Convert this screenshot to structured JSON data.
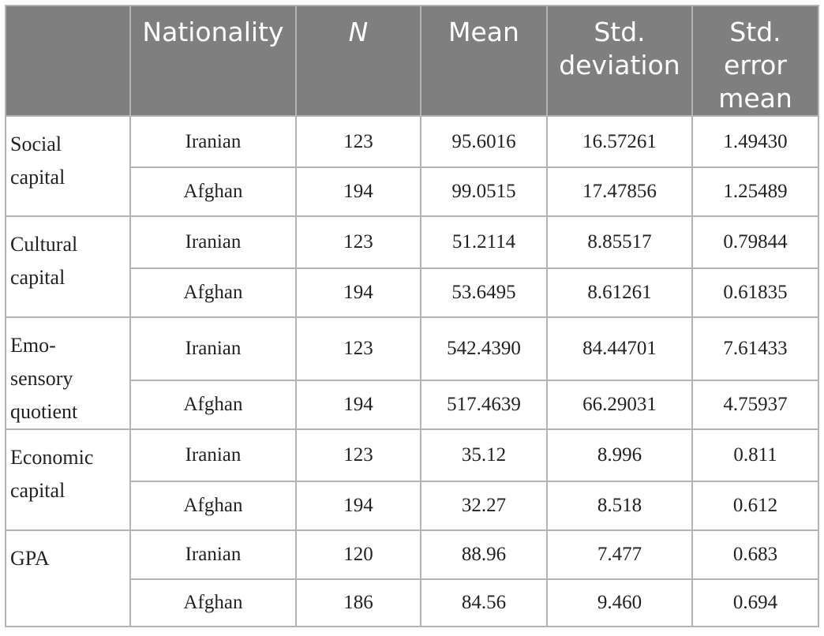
{
  "headers": [
    "",
    "Nationality",
    "N",
    "Mean",
    "Std. deviation",
    "Std. error mean"
  ],
  "header_display": {
    "nationality": "Nationality",
    "n": "N",
    "mean": "Mean",
    "std_dev_1": "Std.",
    "std_dev_2": "deviation",
    "std_err_1": "Std.",
    "std_err_2": "error",
    "std_err_3": "mean"
  },
  "groups": [
    {
      "variable": "Social capital",
      "variable_lines": [
        "Social",
        "capital"
      ],
      "rows": [
        {
          "nationality": "Iranian",
          "n": "123",
          "mean": "95.6016",
          "sd": "16.57261",
          "se": "1.49430"
        },
        {
          "nationality": "Afghan",
          "n": "194",
          "mean": "99.0515",
          "sd": "17.47856",
          "se": "1.25489"
        }
      ]
    },
    {
      "variable": "Cultural capital",
      "variable_lines": [
        "Cultural",
        "capital"
      ],
      "rows": [
        {
          "nationality": "Iranian",
          "n": "123",
          "mean": "51.2114",
          "sd": "8.85517",
          "se": "0.79844"
        },
        {
          "nationality": "Afghan",
          "n": "194",
          "mean": "53.6495",
          "sd": "8.61261",
          "se": "0.61835"
        }
      ]
    },
    {
      "variable": "Emo-sensory quotient",
      "variable_lines": [
        "Emo-",
        "sensory",
        "quotient"
      ],
      "rows": [
        {
          "nationality": "Iranian",
          "n": "123",
          "mean": "542.4390",
          "sd": "84.44701",
          "se": "7.61433"
        },
        {
          "nationality": "Afghan",
          "n": "194",
          "mean": "517.4639",
          "sd": "66.29031",
          "se": "4.75937"
        }
      ]
    },
    {
      "variable": "Economic capital",
      "variable_lines": [
        "Economic",
        "capital"
      ],
      "rows": [
        {
          "nationality": "Iranian",
          "n": "123",
          "mean": "35.12",
          "sd": "8.996",
          "se": "0.811"
        },
        {
          "nationality": "Afghan",
          "n": "194",
          "mean": "32.27",
          "sd": "8.518",
          "se": "0.612"
        }
      ]
    },
    {
      "variable": "GPA",
      "variable_lines": [
        "GPA"
      ],
      "rows": [
        {
          "nationality": "Iranian",
          "n": "120",
          "mean": "88.96",
          "sd": "7.477",
          "se": "0.683"
        },
        {
          "nationality": "Afghan",
          "n": "186",
          "mean": "84.56",
          "sd": "9.460",
          "se": "0.694"
        }
      ]
    }
  ],
  "colors": {
    "header_bg": "#7f7f7f",
    "header_text": "#ffffff",
    "grid": "#b3b3b3",
    "body_text": "#222222"
  }
}
